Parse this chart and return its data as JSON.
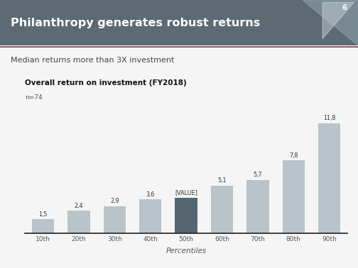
{
  "title": "Philanthropy generates robust returns",
  "subtitle": "Median returns more than 3X investment",
  "chart_title": "Overall return on investment (FY2018)",
  "n_label": "n=74",
  "xlabel": "Percentiles",
  "slide_number": "6",
  "categories": [
    "10th",
    "20th",
    "30th",
    "40th",
    "50th",
    "60th",
    "70th",
    "80th",
    "90th"
  ],
  "values": [
    1.5,
    2.4,
    2.9,
    3.6,
    3.8,
    5.1,
    5.7,
    7.8,
    11.8
  ],
  "bar_labels": [
    "1,5",
    "2,4",
    "2,9",
    "3,6",
    "[VALUE]",
    "5,1",
    "5,7",
    "7,8",
    "11,8"
  ],
  "bar_colors": [
    "#b8c4ca",
    "#b8c4ca",
    "#b8c4ca",
    "#b8c4ca",
    "#536672",
    "#b8c4ca",
    "#b8c4ca",
    "#b8c4ca",
    "#b8c4ca"
  ],
  "header_bg": "#5c6b73",
  "header_text_color": "#ffffff",
  "subtitle_color": "#444444",
  "chart_title_color": "#111111",
  "axis_line_color": "#222222",
  "bar_label_color": "#333333",
  "tick_label_color": "#555555",
  "xlabel_color": "#555555",
  "background_color": "#f5f5f5",
  "page_bg": "#f5f5f5",
  "ylim": [
    0,
    13.5
  ],
  "subtitle_line_color": "#8b1a2e",
  "logo_color1": "#8fa5af",
  "logo_color2": "#c5d0d5"
}
